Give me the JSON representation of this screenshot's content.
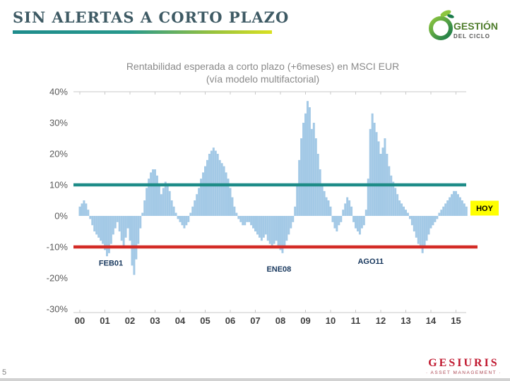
{
  "page": {
    "number": "5"
  },
  "header": {
    "title": "SIN ALERTAS A CORTO PLAZO",
    "underline_colors": [
      "#1e8c8c",
      "#d9e021"
    ]
  },
  "logo": {
    "name": "GESTIÓN",
    "subtitle": "DEL CICLO"
  },
  "footer": {
    "brand": "GESIURIS",
    "tagline": "· ASSET MANAGEMENT ·"
  },
  "colors": {
    "accent_teal": "#1e8c8c",
    "accent_lime": "#d9e021",
    "brand_red": "#c0182f",
    "logo_green": "#8dc63f",
    "annotation_navy": "#17375d"
  },
  "chart_data": {
    "type": "bar",
    "title_line1": "Rentabilidad esperada a corto plazo (+6meses) en MSCI EUR",
    "title_line2": "(vía modelo multifactorial)",
    "start_year": 2000,
    "points_per_year": 12,
    "categories": [
      "00",
      "01",
      "02",
      "03",
      "04",
      "05",
      "06",
      "07",
      "08",
      "09",
      "10",
      "11",
      "12",
      "13",
      "14",
      "15"
    ],
    "ylim": [
      -30,
      40
    ],
    "grid": false,
    "legend": false,
    "y_ticks": [
      {
        "label": "40%",
        "value": 40
      },
      {
        "label": "30%",
        "value": 30
      },
      {
        "label": "20%",
        "value": 20
      },
      {
        "label": "10%",
        "value": 10
      },
      {
        "label": "0%",
        "value": 0
      },
      {
        "label": "-10%",
        "value": -10
      },
      {
        "label": "-20%",
        "value": -20
      },
      {
        "label": "-30%",
        "value": -30
      }
    ],
    "series": [
      {
        "unit": "%",
        "values": [
          3,
          4,
          5,
          4,
          2,
          -1,
          -3,
          -5,
          -6,
          -7,
          -8,
          -9,
          -11,
          -13,
          -12,
          -9,
          -6,
          -4,
          -2,
          -5,
          -8,
          -10,
          -7,
          -4,
          -8,
          -16,
          -19,
          -14,
          -9,
          -4,
          1,
          5,
          9,
          12,
          14,
          15,
          15,
          13,
          10,
          7,
          9,
          11,
          10,
          8,
          5,
          3,
          1,
          -1,
          -2,
          -3,
          -4,
          -3,
          -2,
          1,
          3,
          5,
          7,
          9,
          12,
          14,
          16,
          18,
          20,
          21,
          22,
          21,
          20,
          18,
          17,
          16,
          14,
          12,
          9,
          6,
          3,
          1,
          -1,
          -2,
          -3,
          -3,
          -2,
          -2,
          -3,
          -4,
          -5,
          -6,
          -7,
          -8,
          -7,
          -6,
          -8,
          -9,
          -10,
          -9,
          -8,
          -10,
          -11,
          -12,
          -10,
          -8,
          -6,
          -4,
          -2,
          3,
          10,
          18,
          25,
          30,
          33,
          37,
          35,
          28,
          30,
          25,
          20,
          15,
          10,
          8,
          6,
          5,
          3,
          -2,
          -4,
          -5,
          -3,
          -2,
          2,
          4,
          6,
          5,
          3,
          -2,
          -4,
          -5,
          -6,
          -4,
          -3,
          2,
          12,
          28,
          33,
          30,
          27,
          24,
          20,
          22,
          25,
          20,
          16,
          13,
          11,
          9,
          7,
          5,
          4,
          3,
          2,
          1,
          -1,
          -3,
          -5,
          -7,
          -9,
          -10,
          -12,
          -10,
          -8,
          -6,
          -4,
          -3,
          -2,
          -1,
          1,
          2,
          3,
          4,
          5,
          6,
          7,
          8,
          8,
          7,
          6,
          5,
          4,
          3
        ]
      }
    ],
    "thresholds": [
      {
        "value": 10,
        "color": "#1e8c88"
      },
      {
        "value": -10,
        "color": "#d32b26"
      }
    ],
    "annotations": [
      {
        "label": "FEB01",
        "year": 2001.24,
        "value": -16
      },
      {
        "label": "ENE08",
        "year": 2007.94,
        "value": -18
      },
      {
        "label": "AGO11",
        "year": 2011.6,
        "value": -15.5
      }
    ],
    "today_marker": {
      "label": "HOY",
      "value": 2.5,
      "bg": "#ffff00"
    },
    "colors": {
      "bars": "#a3c9e6"
    }
  }
}
